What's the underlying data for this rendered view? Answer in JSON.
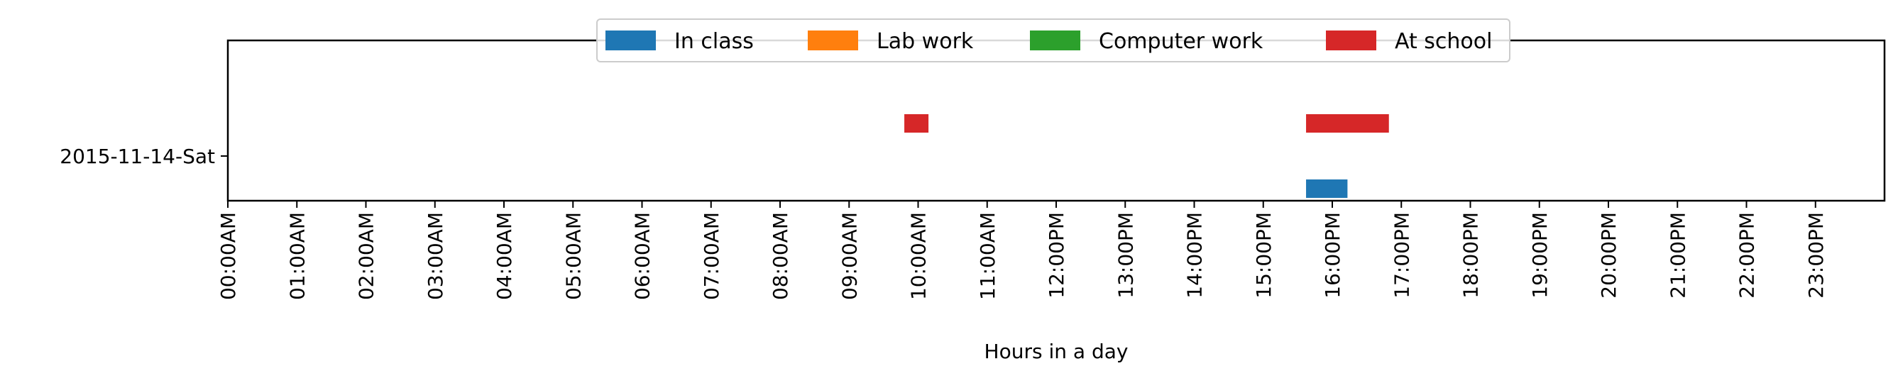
{
  "chart_data": {
    "type": "bar",
    "orientation": "horizontal",
    "xlabel": "Hours in a day",
    "ylabel": "",
    "xlim": [
      0,
      24
    ],
    "x_ticks": [
      0,
      1,
      2,
      3,
      4,
      5,
      6,
      7,
      8,
      9,
      10,
      11,
      12,
      13,
      14,
      15,
      16,
      17,
      18,
      19,
      20,
      21,
      22,
      23
    ],
    "x_tick_labels": [
      "00:00AM",
      "01:00AM",
      "02:00AM",
      "03:00AM",
      "04:00AM",
      "05:00AM",
      "06:00AM",
      "07:00AM",
      "08:00AM",
      "09:00AM",
      "10:00AM",
      "11:00AM",
      "12:00PM",
      "13:00PM",
      "14:00PM",
      "15:00PM",
      "16:00PM",
      "17:00PM",
      "18:00PM",
      "19:00PM",
      "20:00PM",
      "21:00PM",
      "22:00PM",
      "23:00PM"
    ],
    "categories": [
      "2015-11-14-Sat"
    ],
    "legend_position": "top-center",
    "series": [
      {
        "name": "In class",
        "color": "#1f77b4",
        "offset": -1,
        "intervals": [
          [
            15.62,
            16.22
          ]
        ]
      },
      {
        "name": "Lab work",
        "color": "#ff7f0e",
        "offset": 0,
        "intervals": []
      },
      {
        "name": "Computer work",
        "color": "#2ca02c",
        "offset": 0,
        "intervals": []
      },
      {
        "name": "At school",
        "color": "#d62728",
        "offset": 1,
        "intervals": [
          [
            9.8,
            10.15
          ],
          [
            15.62,
            16.82
          ]
        ]
      }
    ]
  }
}
